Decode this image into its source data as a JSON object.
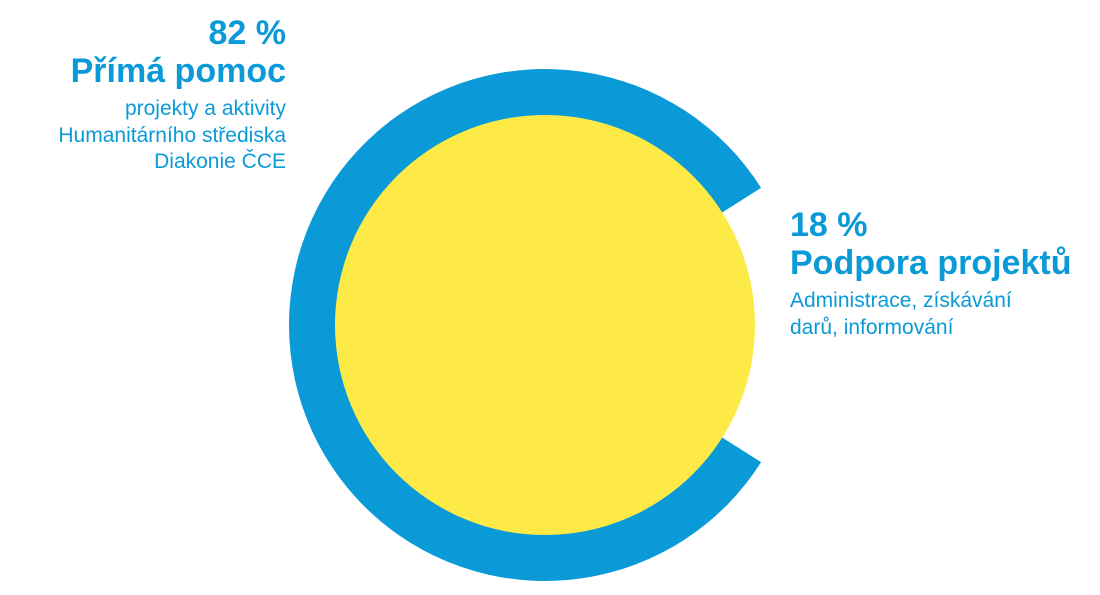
{
  "chart_data": {
    "type": "pie",
    "slices": [
      {
        "value": 82,
        "percent_label": "82 %",
        "title": "Přímá pomoc",
        "description": [
          "projekty a aktivity",
          "Humanitárního střediska",
          "Diakonie ČCE"
        ],
        "color": "#0a9ad8"
      },
      {
        "value": 18,
        "percent_label": "18 %",
        "title": "Podpora projektů",
        "description": [
          "Administrace, získávání",
          "darů, informování"
        ],
        "color": "#ffffff"
      }
    ],
    "inner_color": "#fdea47"
  }
}
